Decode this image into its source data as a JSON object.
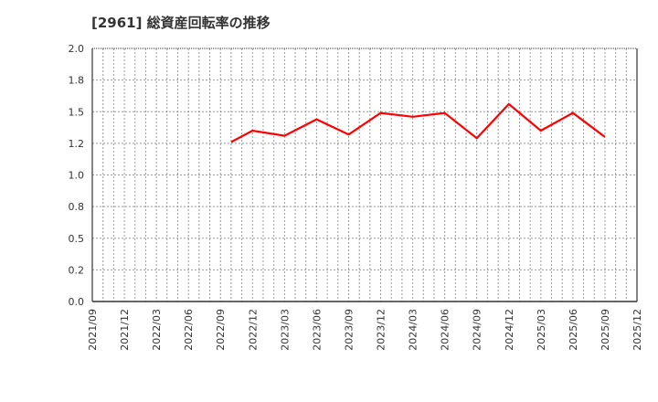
{
  "title": "[2961]  総資産回転率の推移",
  "colors": {
    "line": "#ff0000",
    "axis": "#333333",
    "grid": "#999999"
  },
  "chart_data": {
    "type": "line",
    "title": "[2961] 総資産回転率の推移",
    "xlabel": "",
    "ylabel": "",
    "ylim": [
      0.0,
      2.0
    ],
    "y_ticks": [
      "0.0",
      "0.2",
      "0.5",
      "0.8",
      "1.0",
      "1.2",
      "1.5",
      "1.8",
      "2.0"
    ],
    "x_ticks": [
      "2021/09",
      "2021/12",
      "2022/03",
      "2022/06",
      "2022/09",
      "2022/12",
      "2023/03",
      "2023/06",
      "2023/09",
      "2023/12",
      "2024/03",
      "2024/06",
      "2024/09",
      "2024/12",
      "2025/03",
      "2025/06",
      "2025/09",
      "2025/12"
    ],
    "grid": true,
    "legend": "none",
    "series": [
      {
        "name": "総資産回転率",
        "color": "#ff0000",
        "points": [
          {
            "x": "2022/10",
            "y": 1.26
          },
          {
            "x": "2022/12",
            "y": 1.35
          },
          {
            "x": "2023/03",
            "y": 1.31
          },
          {
            "x": "2023/06",
            "y": 1.44
          },
          {
            "x": "2023/09",
            "y": 1.32
          },
          {
            "x": "2023/12",
            "y": 1.49
          },
          {
            "x": "2024/03",
            "y": 1.46
          },
          {
            "x": "2024/06",
            "y": 1.49
          },
          {
            "x": "2024/09",
            "y": 1.29
          },
          {
            "x": "2024/12",
            "y": 1.56
          },
          {
            "x": "2025/03",
            "y": 1.35
          },
          {
            "x": "2025/06",
            "y": 1.49
          },
          {
            "x": "2025/09",
            "y": 1.3
          }
        ]
      }
    ]
  }
}
